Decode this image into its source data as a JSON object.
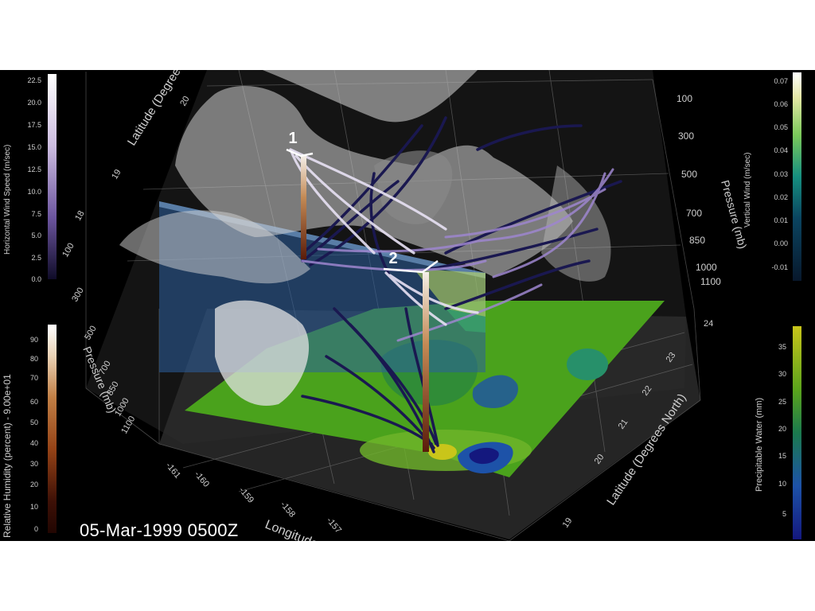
{
  "timestamp": "05-Mar-1999 0500Z",
  "markers": [
    "1",
    "2"
  ],
  "chart_data": [
    {
      "type": "colorbar",
      "label": "Horizontal Wind Speed (m/sec)",
      "ticks": [
        "22.5",
        "20.0",
        "17.5",
        "15.0",
        "12.5",
        "10.0",
        "7.5",
        "5.0",
        "2.5",
        "0.0"
      ],
      "range": [
        0.0,
        22.5
      ],
      "colors": [
        "#ffffff",
        "#e9e2f0",
        "#cdbde0",
        "#ad95cc",
        "#8c72b6",
        "#6c559f",
        "#4d3d86",
        "#312a6a",
        "#1c1848",
        "#0f0c28"
      ]
    },
    {
      "type": "colorbar",
      "label": "Vertical Wind (m/sec)",
      "ticks": [
        "0.07",
        "0.06",
        "0.05",
        "0.04",
        "0.03",
        "0.02",
        "0.01",
        "0.00",
        "-0.01"
      ],
      "range": [
        -0.01,
        0.07
      ],
      "colors": [
        "#ffffff",
        "#e5e8a6",
        "#b8db6a",
        "#7bc95a",
        "#3bad6e",
        "#168f80",
        "#0e6a78",
        "#0a4460",
        "#0a2846",
        "#08182c"
      ]
    },
    {
      "type": "colorbar",
      "label": "Relative Humidity (percent) - 9.00e+01",
      "ticks": [
        "90",
        "80",
        "70",
        "60",
        "50",
        "40",
        "30",
        "20",
        "10",
        "0"
      ],
      "range": [
        0,
        90
      ],
      "colors": [
        "#ffffff",
        "#ead3b6",
        "#d3a576",
        "#c17f45",
        "#ad5f25",
        "#944216",
        "#7a2c0e",
        "#5a1c0a",
        "#3d1006",
        "#220602"
      ]
    },
    {
      "type": "colorbar",
      "label": "Precipitable Water (mm)",
      "ticks": [
        "35",
        "30",
        "25",
        "20",
        "15",
        "10",
        "5"
      ],
      "range": [
        0,
        38
      ],
      "colors": [
        "#c9c51a",
        "#95b51a",
        "#5aa31c",
        "#2b8e2c",
        "#1b7a4e",
        "#166a7e",
        "#1d52a8",
        "#1b34b8",
        "#14187e"
      ]
    },
    {
      "type": "3d-axes",
      "axes": [
        {
          "name": "Latitude (Degrees North)",
          "ticks": [
            "24",
            "23",
            "22",
            "21",
            "20",
            "19"
          ]
        },
        {
          "name": "Longitude (Degrees West)",
          "ticks": [
            "-161",
            "-160",
            "-159",
            "-158",
            "-157"
          ]
        },
        {
          "name": "Pressure (mb)",
          "ticks": [
            "100",
            "300",
            "500",
            "700",
            "850",
            "1000",
            "1100"
          ]
        }
      ],
      "top_partial_labels": [
        "Latitude (Degrees",
        "20",
        "19",
        "18",
        "100"
      ],
      "left_pressure_ticks": [
        "300",
        "500",
        "700",
        "850",
        "1000",
        "1100"
      ]
    }
  ]
}
